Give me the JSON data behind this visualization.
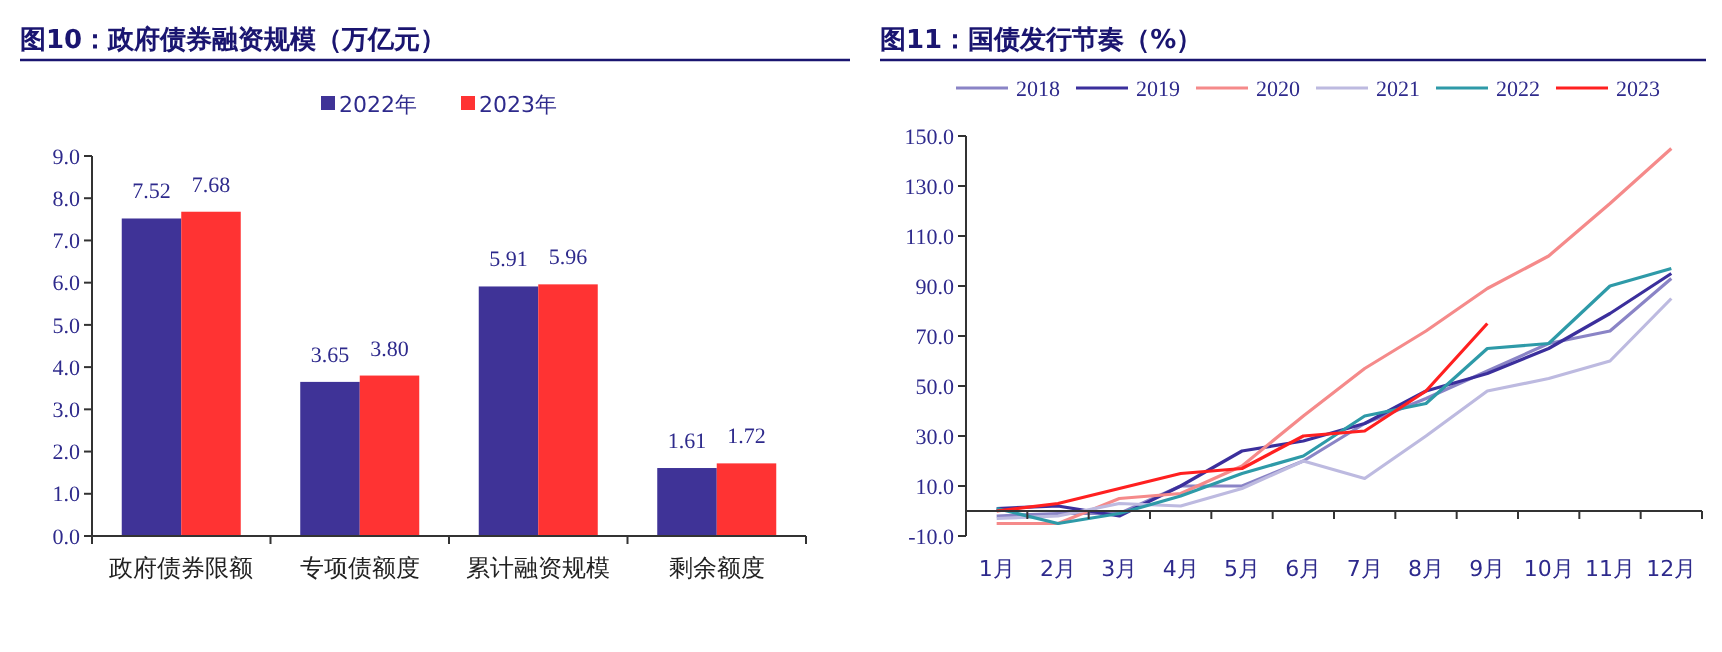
{
  "chart_data": [
    {
      "type": "bar",
      "title": "图10：政府债券融资规模（万亿元）",
      "categories": [
        "政府债券限额",
        "专项债额度",
        "累计融资规模",
        "剩余额度"
      ],
      "series": [
        {
          "name": "2022年",
          "color": "#3f3397",
          "values": [
            7.52,
            3.65,
            5.91,
            1.61
          ],
          "value_labels": [
            "7.52",
            "3.65",
            "5.91",
            "1.61"
          ]
        },
        {
          "name": "2023年",
          "color": "#ff3333",
          "values": [
            7.68,
            3.8,
            5.96,
            1.72
          ],
          "value_labels": [
            "7.68",
            "3.80",
            "5.96",
            "1.72"
          ]
        }
      ],
      "ylim": [
        0,
        9
      ],
      "yticks": [
        {
          "value": 0,
          "label": "0.0"
        },
        {
          "value": 1,
          "label": "1.0"
        },
        {
          "value": 2,
          "label": "2.0"
        },
        {
          "value": 3,
          "label": "3.0"
        },
        {
          "value": 4,
          "label": "4.0"
        },
        {
          "value": 5,
          "label": "5.0"
        },
        {
          "value": 6,
          "label": "6.0"
        },
        {
          "value": 7,
          "label": "7.0"
        },
        {
          "value": 8,
          "label": "8.0"
        },
        {
          "value": 9,
          "label": "9.0"
        }
      ],
      "legend": "top",
      "grid": false
    },
    {
      "type": "line",
      "title": "图11：国债发行节奏（%）",
      "categories": [
        "1月",
        "2月",
        "3月",
        "4月",
        "5月",
        "6月",
        "7月",
        "8月",
        "9月",
        "10月",
        "11月",
        "12月"
      ],
      "series": [
        {
          "name": "2018",
          "color": "#8a84c6",
          "values": [
            -2,
            -1,
            -1,
            10,
            10,
            20,
            35,
            45,
            56,
            67,
            72,
            93
          ]
        },
        {
          "name": "2019",
          "color": "#3b2f9c",
          "values": [
            1,
            2,
            -2,
            10,
            24,
            28,
            35,
            48,
            55,
            65,
            79,
            95
          ]
        },
        {
          "name": "2020",
          "color": "#f58a8a",
          "values": [
            -5,
            -5,
            5,
            7,
            18,
            38,
            57,
            72,
            89,
            102,
            123,
            145
          ]
        },
        {
          "name": "2021",
          "color": "#bdbae0",
          "values": [
            -3,
            -2,
            3,
            2,
            9,
            20,
            13,
            30,
            48,
            53,
            60,
            85
          ]
        },
        {
          "name": "2022",
          "color": "#2e9aa8",
          "values": [
            1,
            -5,
            -1,
            6,
            15,
            22,
            38,
            43,
            65,
            67,
            90,
            97
          ]
        },
        {
          "name": "2023",
          "color": "#ff2020",
          "values": [
            0,
            3,
            9,
            15,
            17,
            30,
            32,
            48,
            75,
            null,
            null,
            null
          ]
        }
      ],
      "ylim": [
        -10,
        150
      ],
      "yticks": [
        {
          "value": -10,
          "label": "-10.0"
        },
        {
          "value": 10,
          "label": "10.0"
        },
        {
          "value": 30,
          "label": "30.0"
        },
        {
          "value": 50,
          "label": "50.0"
        },
        {
          "value": 70,
          "label": "70.0"
        },
        {
          "value": 90,
          "label": "90.0"
        },
        {
          "value": 110,
          "label": "110.0"
        },
        {
          "value": 130,
          "label": "130.0"
        },
        {
          "value": 150,
          "label": "150.0"
        }
      ],
      "legend": "top",
      "grid": false,
      "marker": "none",
      "line_style": "solid"
    }
  ]
}
